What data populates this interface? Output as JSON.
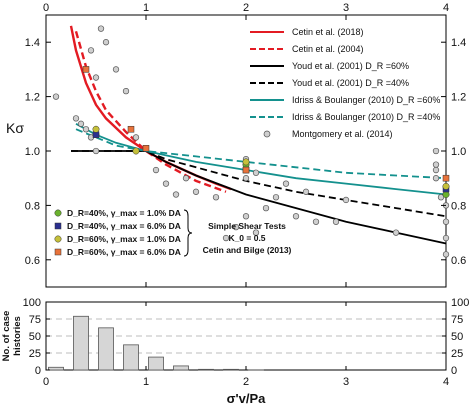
{
  "chart_data": [
    {
      "type": "line",
      "ylabel": "Kσ",
      "xlim": [
        0,
        4
      ],
      "ylim": [
        0.5,
        1.5
      ],
      "x_ticks": [
        "0",
        "1",
        "2",
        "3",
        "4"
      ],
      "y_ticks": [
        "0.6",
        "0.8",
        "1.0",
        "1.2",
        "1.4"
      ],
      "grid": false,
      "legend_position": "top-right",
      "series": [
        {
          "name": "Cetin et al. (2018)",
          "color": "#e31b23",
          "dash": "solid",
          "x": [
            0.25,
            0.3,
            0.4,
            0.5,
            0.6,
            0.8,
            1.0,
            1.2,
            1.5,
            1.7,
            1.85
          ],
          "y": [
            1.46,
            1.37,
            1.25,
            1.17,
            1.12,
            1.05,
            1.0,
            0.96,
            0.91,
            0.88,
            0.86
          ]
        },
        {
          "name": "Cetin et al. (2004)",
          "color": "#e31b23",
          "dash": "dashed",
          "x": [
            0.3,
            0.4,
            0.5,
            0.6,
            0.8,
            1.0,
            1.2,
            1.5,
            1.8
          ],
          "y": [
            1.44,
            1.31,
            1.22,
            1.15,
            1.07,
            1.0,
            0.95,
            0.89,
            0.85
          ]
        },
        {
          "name": "Youd et al. (2001) D_R =60%",
          "color": "#000000",
          "dash": "solid",
          "x": [
            0.25,
            1.0,
            1.2,
            1.5,
            2.0,
            2.5,
            3.0,
            3.5,
            4.0
          ],
          "y": [
            1.0,
            1.0,
            0.96,
            0.91,
            0.84,
            0.79,
            0.74,
            0.7,
            0.66
          ]
        },
        {
          "name": "Youd et al. (2001) D_R =40%",
          "color": "#000000",
          "dash": "dashed",
          "x": [
            0.25,
            1.0,
            1.2,
            1.5,
            2.0,
            2.5,
            3.0,
            3.5,
            4.0
          ],
          "y": [
            1.0,
            1.0,
            0.97,
            0.94,
            0.89,
            0.85,
            0.82,
            0.79,
            0.76
          ]
        },
        {
          "name": "Idriss & Boulanger (2010) D_R =60%",
          "color": "#14918e",
          "dash": "solid",
          "x": [
            0.3,
            0.5,
            0.7,
            1.0,
            1.5,
            2.0,
            2.5,
            3.0,
            3.5,
            4.0
          ],
          "y": [
            1.1,
            1.06,
            1.03,
            1.0,
            0.96,
            0.93,
            0.9,
            0.88,
            0.86,
            0.84
          ]
        },
        {
          "name": "Idriss & Boulanger (2010) D_R =40%",
          "color": "#14918e",
          "dash": "dashed",
          "x": [
            0.3,
            0.5,
            0.7,
            1.0,
            1.5,
            2.0,
            2.5,
            3.0,
            3.5,
            4.0
          ],
          "y": [
            1.08,
            1.05,
            1.02,
            1.0,
            0.98,
            0.96,
            0.94,
            0.92,
            0.91,
            0.9
          ]
        }
      ],
      "montgomery": {
        "name": "Montgomery et al. (2014)",
        "x": [
          0.1,
          0.3,
          0.35,
          0.4,
          0.45,
          0.45,
          0.5,
          0.5,
          0.55,
          0.6,
          0.7,
          0.8,
          0.9,
          1.1,
          1.2,
          1.3,
          1.4,
          1.5,
          1.7,
          1.8,
          1.9,
          2.0,
          2.0,
          2.0,
          2.1,
          2.1,
          2.2,
          2.3,
          2.4,
          2.5,
          2.6,
          2.7,
          2.9,
          3.0,
          3.5,
          3.9,
          3.9,
          3.9,
          3.9,
          3.95,
          4.0,
          4.0,
          4.0,
          4.0
        ],
        "y": [
          1.2,
          1.12,
          1.1,
          1.08,
          1.05,
          1.37,
          1.27,
          1.0,
          1.45,
          1.4,
          1.3,
          1.22,
          1.05,
          0.93,
          0.88,
          0.84,
          0.9,
          0.85,
          0.83,
          0.68,
          0.72,
          0.97,
          0.9,
          0.76,
          0.92,
          0.7,
          0.79,
          0.83,
          0.88,
          0.76,
          0.85,
          0.74,
          0.74,
          0.82,
          0.7,
          1.0,
          0.95,
          0.93,
          0.9,
          0.83,
          0.8,
          0.74,
          0.68,
          0.62
        ]
      },
      "simple_shear": [
        {
          "label": "D_R=40%, γ_max = 1.0% DA",
          "color": "#6bb22d",
          "x": [
            0.5,
            2.0,
            4.0
          ],
          "y": [
            1.06,
            0.95,
            0.84
          ]
        },
        {
          "label": "D_R=40%, γ_max = 6.0% DA",
          "color": "#2b2f8f",
          "x": [
            0.5,
            2.0,
            4.0
          ],
          "y": [
            1.06,
            0.93,
            0.86
          ]
        },
        {
          "label": "D_R=60%, γ_max = 1.0% DA",
          "color": "#c5c03a",
          "x": [
            0.5,
            0.9,
            2.0,
            4.0
          ],
          "y": [
            1.08,
            1.0,
            0.96,
            0.87
          ]
        },
        {
          "label": "D_R=60%, γ_max = 6.0% DA",
          "color": "#e8723a",
          "x": [
            0.4,
            0.85,
            1.0,
            2.0,
            4.0
          ],
          "y": [
            1.3,
            1.08,
            1.01,
            0.93,
            0.9
          ]
        }
      ],
      "annotation": [
        "Simple Shear Tests",
        "K_0 = 0.5",
        "Cetin and Bilge (2013)"
      ]
    },
    {
      "type": "bar",
      "ylabel": "No. of case histories",
      "xlabel": "σ'v/Pa",
      "xlim": [
        0,
        4
      ],
      "ylim": [
        0,
        100
      ],
      "x_ticks": [
        "0",
        "1",
        "2",
        "3",
        "4"
      ],
      "y_ticks": [
        "0",
        "25",
        "50",
        "75",
        "100"
      ],
      "grid": true,
      "bin_centers": [
        0.1,
        0.35,
        0.6,
        0.85,
        1.1,
        1.35,
        1.6,
        1.85,
        2.1
      ],
      "values": [
        4,
        79,
        62,
        37,
        19,
        6,
        1,
        1,
        0
      ]
    }
  ]
}
